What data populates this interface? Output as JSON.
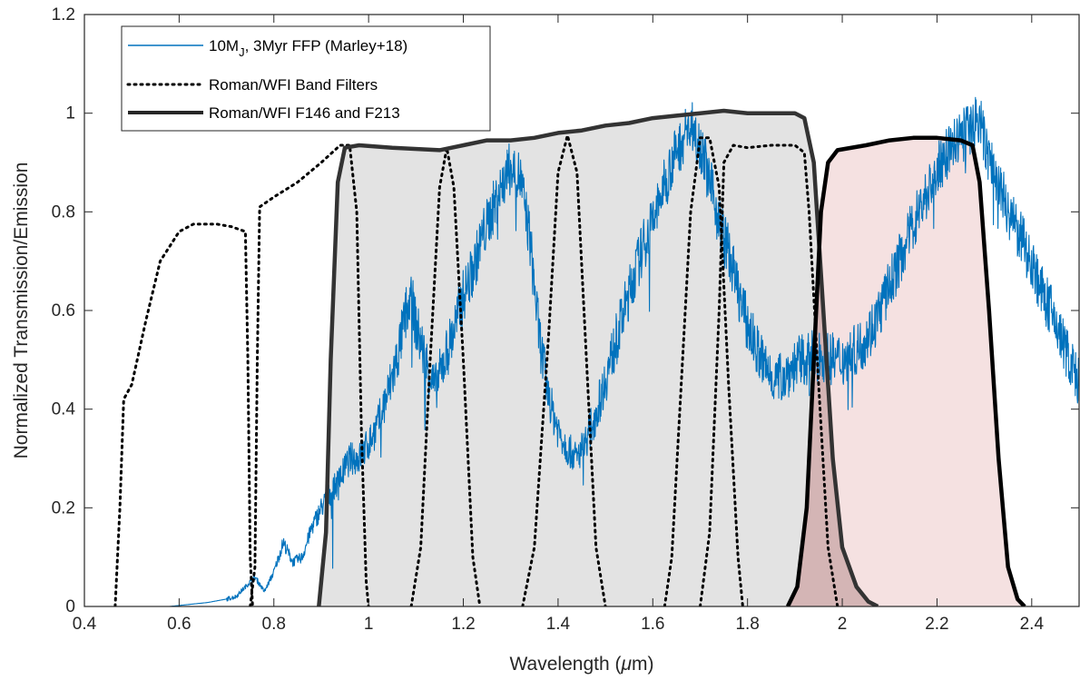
{
  "chart_data": {
    "type": "line",
    "xlabel_prefix": "Wavelength (",
    "xlabel_mu": "μ",
    "xlabel_suffix": "m)",
    "ylabel": "Normalized Transmission/Emission",
    "xlim": [
      0.4,
      2.5
    ],
    "ylim": [
      0,
      1.2
    ],
    "xticks": [
      0.4,
      0.6,
      0.8,
      1.0,
      1.2,
      1.4,
      1.6,
      1.8,
      2.0,
      2.2,
      2.4
    ],
    "xtick_labels": [
      "0.4",
      "0.6",
      "0.8",
      "1",
      "1.2",
      "1.4",
      "1.6",
      "1.8",
      "2",
      "2.2",
      "2.4"
    ],
    "yticks": [
      0,
      0.2,
      0.4,
      0.6,
      0.8,
      1.0,
      1.2
    ],
    "ytick_labels": [
      "0",
      "0.2",
      "0.4",
      "0.6",
      "0.8",
      "1",
      "1.2"
    ],
    "grid": false,
    "legend_placement": "top-left",
    "legend": {
      "spectrum_main": "10M",
      "spectrum_sub": "J",
      "spectrum_rest": ", 3Myr FFP (Marley+18)",
      "band_filters": "Roman/WFI Band Filters",
      "wide_filters": "Roman/WFI F146 and F213"
    },
    "colors": {
      "spectrum": "#0072BD",
      "band_filters": "#000000",
      "f146_line": "#333333",
      "f146_fill": "#e3e3e3",
      "f213_line": "#000000",
      "f213_fill": "#f5e1e1",
      "overlap_fill": "#d4b5b5"
    },
    "series": [
      {
        "name": "10MJ, 3Myr FFP (Marley+18)",
        "style": "solid-thin",
        "points": [
          [
            0.4,
            0
          ],
          [
            0.58,
            0
          ],
          [
            0.62,
            0.004
          ],
          [
            0.66,
            0.008
          ],
          [
            0.7,
            0.015
          ],
          [
            0.72,
            0.02
          ],
          [
            0.74,
            0.04
          ],
          [
            0.76,
            0.06
          ],
          [
            0.78,
            0.03
          ],
          [
            0.8,
            0.07
          ],
          [
            0.82,
            0.13
          ],
          [
            0.84,
            0.09
          ],
          [
            0.86,
            0.1
          ],
          [
            0.88,
            0.16
          ],
          [
            0.9,
            0.2
          ],
          [
            0.92,
            0.23
          ],
          [
            0.94,
            0.26
          ],
          [
            0.96,
            0.3
          ],
          [
            0.98,
            0.3
          ],
          [
            1.0,
            0.33
          ],
          [
            1.02,
            0.37
          ],
          [
            1.04,
            0.43
          ],
          [
            1.06,
            0.5
          ],
          [
            1.08,
            0.6
          ],
          [
            1.09,
            0.63
          ],
          [
            1.1,
            0.57
          ],
          [
            1.12,
            0.5
          ],
          [
            1.14,
            0.44
          ],
          [
            1.16,
            0.5
          ],
          [
            1.18,
            0.56
          ],
          [
            1.2,
            0.63
          ],
          [
            1.22,
            0.68
          ],
          [
            1.24,
            0.75
          ],
          [
            1.26,
            0.8
          ],
          [
            1.28,
            0.85
          ],
          [
            1.3,
            0.89
          ],
          [
            1.32,
            0.87
          ],
          [
            1.34,
            0.75
          ],
          [
            1.36,
            0.55
          ],
          [
            1.38,
            0.42
          ],
          [
            1.4,
            0.36
          ],
          [
            1.42,
            0.32
          ],
          [
            1.44,
            0.3
          ],
          [
            1.46,
            0.34
          ],
          [
            1.48,
            0.39
          ],
          [
            1.5,
            0.46
          ],
          [
            1.52,
            0.53
          ],
          [
            1.54,
            0.6
          ],
          [
            1.56,
            0.67
          ],
          [
            1.58,
            0.73
          ],
          [
            1.6,
            0.78
          ],
          [
            1.62,
            0.84
          ],
          [
            1.64,
            0.9
          ],
          [
            1.66,
            0.94
          ],
          [
            1.68,
            0.98
          ],
          [
            1.7,
            0.94
          ],
          [
            1.72,
            0.86
          ],
          [
            1.74,
            0.78
          ],
          [
            1.76,
            0.72
          ],
          [
            1.78,
            0.64
          ],
          [
            1.8,
            0.57
          ],
          [
            1.82,
            0.52
          ],
          [
            1.84,
            0.48
          ],
          [
            1.86,
            0.46
          ],
          [
            1.88,
            0.47
          ],
          [
            1.9,
            0.49
          ],
          [
            1.92,
            0.5
          ],
          [
            1.94,
            0.51
          ],
          [
            1.96,
            0.51
          ],
          [
            1.98,
            0.5
          ],
          [
            2.0,
            0.5
          ],
          [
            2.02,
            0.51
          ],
          [
            2.04,
            0.53
          ],
          [
            2.06,
            0.56
          ],
          [
            2.08,
            0.6
          ],
          [
            2.1,
            0.65
          ],
          [
            2.12,
            0.7
          ],
          [
            2.14,
            0.75
          ],
          [
            2.16,
            0.8
          ],
          [
            2.18,
            0.84
          ],
          [
            2.2,
            0.88
          ],
          [
            2.22,
            0.92
          ],
          [
            2.24,
            0.94
          ],
          [
            2.26,
            0.96
          ],
          [
            2.28,
            0.98
          ],
          [
            2.29,
            0.99
          ],
          [
            2.3,
            0.94
          ],
          [
            2.32,
            0.88
          ],
          [
            2.34,
            0.83
          ],
          [
            2.36,
            0.78
          ],
          [
            2.38,
            0.74
          ],
          [
            2.4,
            0.7
          ],
          [
            2.42,
            0.64
          ],
          [
            2.44,
            0.6
          ],
          [
            2.46,
            0.55
          ],
          [
            2.48,
            0.5
          ],
          [
            2.5,
            0.45
          ]
        ]
      },
      {
        "name": "Roman/WFI Band Filters",
        "style": "dotted",
        "curves": [
          [
            [
              0.465,
              0
            ],
            [
              0.475,
              0.2
            ],
            [
              0.483,
              0.42
            ],
            [
              0.5,
              0.45
            ],
            [
              0.53,
              0.58
            ],
            [
              0.56,
              0.7
            ],
            [
              0.6,
              0.76
            ],
            [
              0.63,
              0.775
            ],
            [
              0.68,
              0.775
            ],
            [
              0.71,
              0.77
            ],
            [
              0.74,
              0.76
            ],
            [
              0.745,
              0.5
            ],
            [
              0.75,
              0.1
            ],
            [
              0.755,
              0
            ]
          ],
          [
            [
              0.75,
              0
            ],
            [
              0.76,
              0.08
            ],
            [
              0.765,
              0.5
            ],
            [
              0.77,
              0.81
            ],
            [
              0.8,
              0.83
            ],
            [
              0.85,
              0.86
            ],
            [
              0.9,
              0.9
            ],
            [
              0.94,
              0.935
            ],
            [
              0.96,
              0.935
            ],
            [
              0.975,
              0.8
            ],
            [
              0.985,
              0.35
            ],
            [
              0.995,
              0.05
            ],
            [
              1.0,
              0
            ]
          ],
          [
            [
              1.09,
              0
            ],
            [
              1.11,
              0.12
            ],
            [
              1.13,
              0.5
            ],
            [
              1.15,
              0.85
            ],
            [
              1.165,
              0.93
            ],
            [
              1.18,
              0.85
            ],
            [
              1.2,
              0.5
            ],
            [
              1.22,
              0.1
            ],
            [
              1.235,
              0
            ]
          ],
          [
            [
              1.325,
              0
            ],
            [
              1.35,
              0.12
            ],
            [
              1.38,
              0.55
            ],
            [
              1.4,
              0.88
            ],
            [
              1.42,
              0.955
            ],
            [
              1.44,
              0.88
            ],
            [
              1.46,
              0.5
            ],
            [
              1.48,
              0.12
            ],
            [
              1.5,
              0
            ]
          ],
          [
            [
              1.625,
              0
            ],
            [
              1.64,
              0.1
            ],
            [
              1.66,
              0.45
            ],
            [
              1.68,
              0.8
            ],
            [
              1.7,
              0.95
            ],
            [
              1.72,
              0.95
            ],
            [
              1.74,
              0.85
            ],
            [
              1.76,
              0.45
            ],
            [
              1.78,
              0.1
            ],
            [
              1.79,
              0
            ]
          ],
          [
            [
              1.7,
              0
            ],
            [
              1.72,
              0.15
            ],
            [
              1.74,
              0.6
            ],
            [
              1.75,
              0.9
            ],
            [
              1.77,
              0.935
            ],
            [
              1.8,
              0.93
            ],
            [
              1.85,
              0.935
            ],
            [
              1.9,
              0.935
            ],
            [
              1.92,
              0.92
            ],
            [
              1.93,
              0.8
            ],
            [
              1.95,
              0.45
            ],
            [
              1.97,
              0.12
            ],
            [
              1.99,
              0
            ]
          ]
        ]
      },
      {
        "name": "F146",
        "style": "thick-filled",
        "points": [
          [
            0.895,
            0
          ],
          [
            0.91,
            0.15
          ],
          [
            0.92,
            0.5
          ],
          [
            0.935,
            0.86
          ],
          [
            0.95,
            0.93
          ],
          [
            0.98,
            0.935
          ],
          [
            1.05,
            0.93
          ],
          [
            1.15,
            0.925
          ],
          [
            1.2,
            0.935
          ],
          [
            1.25,
            0.945
          ],
          [
            1.3,
            0.945
          ],
          [
            1.35,
            0.95
          ],
          [
            1.4,
            0.96
          ],
          [
            1.45,
            0.965
          ],
          [
            1.5,
            0.975
          ],
          [
            1.55,
            0.98
          ],
          [
            1.6,
            0.99
          ],
          [
            1.65,
            0.995
          ],
          [
            1.7,
            1.0
          ],
          [
            1.75,
            1.005
          ],
          [
            1.8,
            1.0
          ],
          [
            1.85,
            1.0
          ],
          [
            1.9,
            1.0
          ],
          [
            1.92,
            0.99
          ],
          [
            1.94,
            0.9
          ],
          [
            1.96,
            0.6
          ],
          [
            1.98,
            0.3
          ],
          [
            2.0,
            0.12
          ],
          [
            2.03,
            0.04
          ],
          [
            2.055,
            0.01
          ],
          [
            2.075,
            0
          ]
        ]
      },
      {
        "name": "F213",
        "style": "thick-filled",
        "points": [
          [
            1.885,
            0
          ],
          [
            1.905,
            0.04
          ],
          [
            1.925,
            0.2
          ],
          [
            1.94,
            0.5
          ],
          [
            1.955,
            0.8
          ],
          [
            1.97,
            0.9
          ],
          [
            1.99,
            0.925
          ],
          [
            2.05,
            0.935
          ],
          [
            2.1,
            0.945
          ],
          [
            2.15,
            0.95
          ],
          [
            2.2,
            0.95
          ],
          [
            2.25,
            0.945
          ],
          [
            2.275,
            0.935
          ],
          [
            2.29,
            0.86
          ],
          [
            2.31,
            0.6
          ],
          [
            2.33,
            0.3
          ],
          [
            2.35,
            0.08
          ],
          [
            2.37,
            0.015
          ],
          [
            2.385,
            0
          ]
        ]
      }
    ]
  }
}
